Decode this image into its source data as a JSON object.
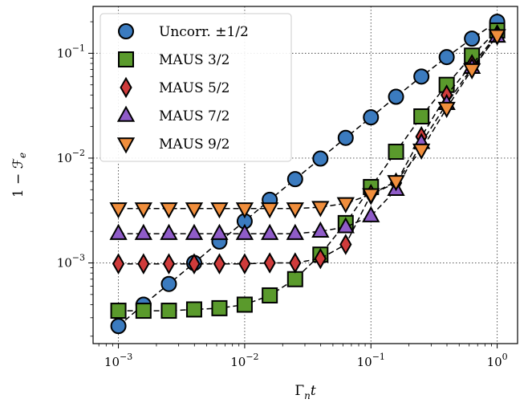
{
  "chart_data": {
    "type": "line",
    "xscale": "log",
    "yscale": "log",
    "xlim": [
      0.00063,
      1.45
    ],
    "ylim": [
      0.00017,
      0.28
    ],
    "xlabel": "Γnt",
    "ylabel": "1 − ℱe",
    "x_ticks": [
      0.001,
      0.01,
      0.1,
      1
    ],
    "x_tick_labels": [
      {
        "base": "10",
        "exp": "−3"
      },
      {
        "base": "10",
        "exp": "−2"
      },
      {
        "base": "10",
        "exp": "−1"
      },
      {
        "base": "10",
        "exp": "0"
      }
    ],
    "y_ticks": [
      0.001,
      0.01,
      0.1
    ],
    "y_tick_labels": [
      {
        "base": "10",
        "exp": "−3"
      },
      {
        "base": "10",
        "exp": "−2"
      },
      {
        "base": "10",
        "exp": "−1"
      }
    ],
    "grid": true,
    "legend_position": "top-left",
    "x": [
      0.001,
      0.00158,
      0.00251,
      0.00398,
      0.00631,
      0.01,
      0.0158,
      0.0251,
      0.0398,
      0.0631,
      0.1,
      0.158,
      0.251,
      0.398,
      0.631,
      1.0
    ],
    "series": [
      {
        "name": "Uncorr. ±1/2",
        "marker": "circle",
        "color": "#3b7bbf",
        "values": [
          0.00025,
          0.0004,
          0.00063,
          0.001,
          0.0016,
          0.0025,
          0.004,
          0.0063,
          0.0099,
          0.0156,
          0.0245,
          0.0385,
          0.06,
          0.092,
          0.138,
          0.2
        ]
      },
      {
        "name": "MAUS 3/2",
        "marker": "square",
        "color": "#5a9a2c",
        "values": [
          0.00035,
          0.00035,
          0.00035,
          0.00036,
          0.00037,
          0.0004,
          0.00049,
          0.0007,
          0.0012,
          0.0024,
          0.0053,
          0.0115,
          0.025,
          0.05,
          0.095,
          0.165
        ]
      },
      {
        "name": "MAUS 5/2",
        "marker": "diamond",
        "color": "#cf3b3b",
        "values": [
          0.00098,
          0.00098,
          0.00098,
          0.00098,
          0.00098,
          0.00098,
          0.001,
          0.001,
          0.0011,
          0.0015,
          0.0045,
          0.0058,
          0.016,
          0.04,
          0.078,
          0.15
        ]
      },
      {
        "name": "MAUS 7/2",
        "marker": "triangle-up",
        "color": "#8f5cc8",
        "values": [
          0.0019,
          0.0019,
          0.0019,
          0.0019,
          0.0019,
          0.0019,
          0.0019,
          0.0019,
          0.002,
          0.0022,
          0.0028,
          0.005,
          0.014,
          0.033,
          0.073,
          0.145
        ]
      },
      {
        "name": "MAUS 9/2",
        "marker": "triangle-down",
        "color": "#f08e3c",
        "values": [
          0.0033,
          0.0033,
          0.0033,
          0.0033,
          0.0033,
          0.0033,
          0.0033,
          0.0033,
          0.0034,
          0.0037,
          0.0045,
          0.006,
          0.012,
          0.03,
          0.07,
          0.148
        ]
      }
    ]
  }
}
